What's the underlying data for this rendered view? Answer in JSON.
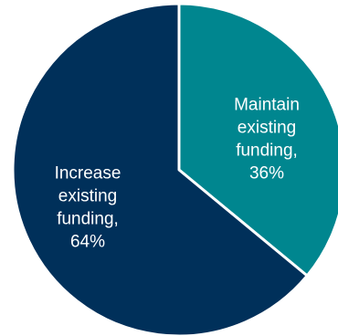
{
  "chart_data": {
    "type": "pie",
    "slices": [
      {
        "label_lines": [
          "Maintain",
          "existing",
          "funding,",
          "36%"
        ],
        "category": "Maintain existing funding",
        "value": 36,
        "color": "#00868f"
      },
      {
        "label_lines": [
          "Increase",
          "existing",
          "funding,",
          "64%"
        ],
        "category": "Increase existing funding",
        "value": 64,
        "color": "#00305a"
      }
    ],
    "start_angle_deg": 0,
    "direction": "clockwise",
    "slice_border_color": "#ffffff",
    "legend": "none"
  }
}
